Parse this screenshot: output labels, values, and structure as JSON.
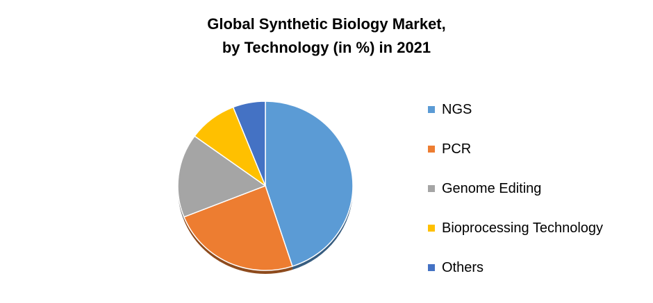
{
  "chart_data": {
    "type": "pie",
    "title_lines": [
      "Global Synthetic Biology Market,",
      "by Technology (in %) in 2021"
    ],
    "categories": [
      "NGS",
      "PCR",
      "Genome Editing",
      "Bioprocessing Technology",
      "Others"
    ],
    "values": [
      45,
      24,
      16,
      9,
      6
    ],
    "colors": [
      "#5B9BD5",
      "#ED7D31",
      "#A5A5A5",
      "#FFC000",
      "#4472C4"
    ],
    "legend_position": "right",
    "style": "3d-tilted"
  }
}
